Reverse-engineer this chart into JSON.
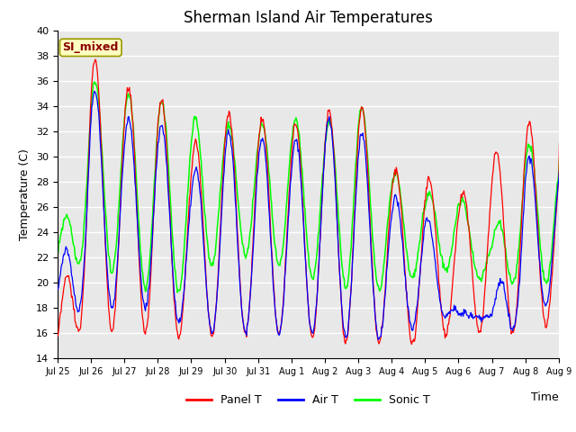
{
  "title": "Sherman Island Air Temperatures",
  "xlabel": "Time",
  "ylabel": "Temperature (C)",
  "ylim": [
    14,
    40
  ],
  "yticks": [
    14,
    16,
    18,
    20,
    22,
    24,
    26,
    28,
    30,
    32,
    34,
    36,
    38,
    40
  ],
  "annotation_text": "SI_mixed",
  "annotation_color": "#8B0000",
  "annotation_bg": "#FFFFC0",
  "annotation_edge": "#999900",
  "panel_color": "#FF0000",
  "air_color": "#0000FF",
  "sonic_color": "#00FF00",
  "bg_color": "#E8E8E8",
  "grid_color": "#FFFFFF",
  "x_tick_labels": [
    "Jul 25",
    "Jul 26",
    "Jul 27",
    "Jul 28",
    "Jul 29",
    "Jul 30",
    "Jul 31",
    "Aug 1",
    "Aug 2",
    "Aug 3",
    "Aug 4",
    "Aug 5",
    "Aug 6",
    "Aug 7",
    "Aug 8",
    "Aug 9"
  ],
  "n_days": 16,
  "panel_peaks": [
    15.5,
    38,
    35.5,
    35,
    30.7,
    33.5,
    33,
    32.5,
    33.5,
    34.5,
    29,
    28.5,
    26.8,
    30,
    33,
    30,
    30
  ],
  "panel_mins": [
    15.5,
    16.5,
    16,
    16,
    15.5,
    16,
    16,
    16,
    15.5,
    15,
    15.5,
    15,
    16.5,
    16,
    16,
    17,
    17
  ],
  "air_peaks": [
    19.5,
    35.5,
    33,
    33,
    28.5,
    32,
    31.5,
    31,
    33,
    32.5,
    27,
    26,
    17.5,
    17.5,
    30,
    29.5,
    29
  ],
  "air_mins": [
    17.5,
    18,
    18,
    18,
    16,
    16,
    16,
    16,
    16,
    15.5,
    15.5,
    17,
    17.5,
    17,
    16,
    19.5,
    20
  ],
  "sonic_peaks": [
    22.5,
    36,
    35,
    34.5,
    33,
    32.5,
    32.5,
    33,
    32.5,
    34.5,
    29,
    27,
    27,
    23.5,
    31,
    30.5,
    30.5
  ],
  "sonic_mins": [
    21.5,
    21.5,
    20.5,
    19,
    19.5,
    22.5,
    22,
    21,
    20,
    19.5,
    19.5,
    21,
    21,
    20,
    20,
    20,
    20
  ],
  "peak_hour": 15,
  "min_hour": 5
}
